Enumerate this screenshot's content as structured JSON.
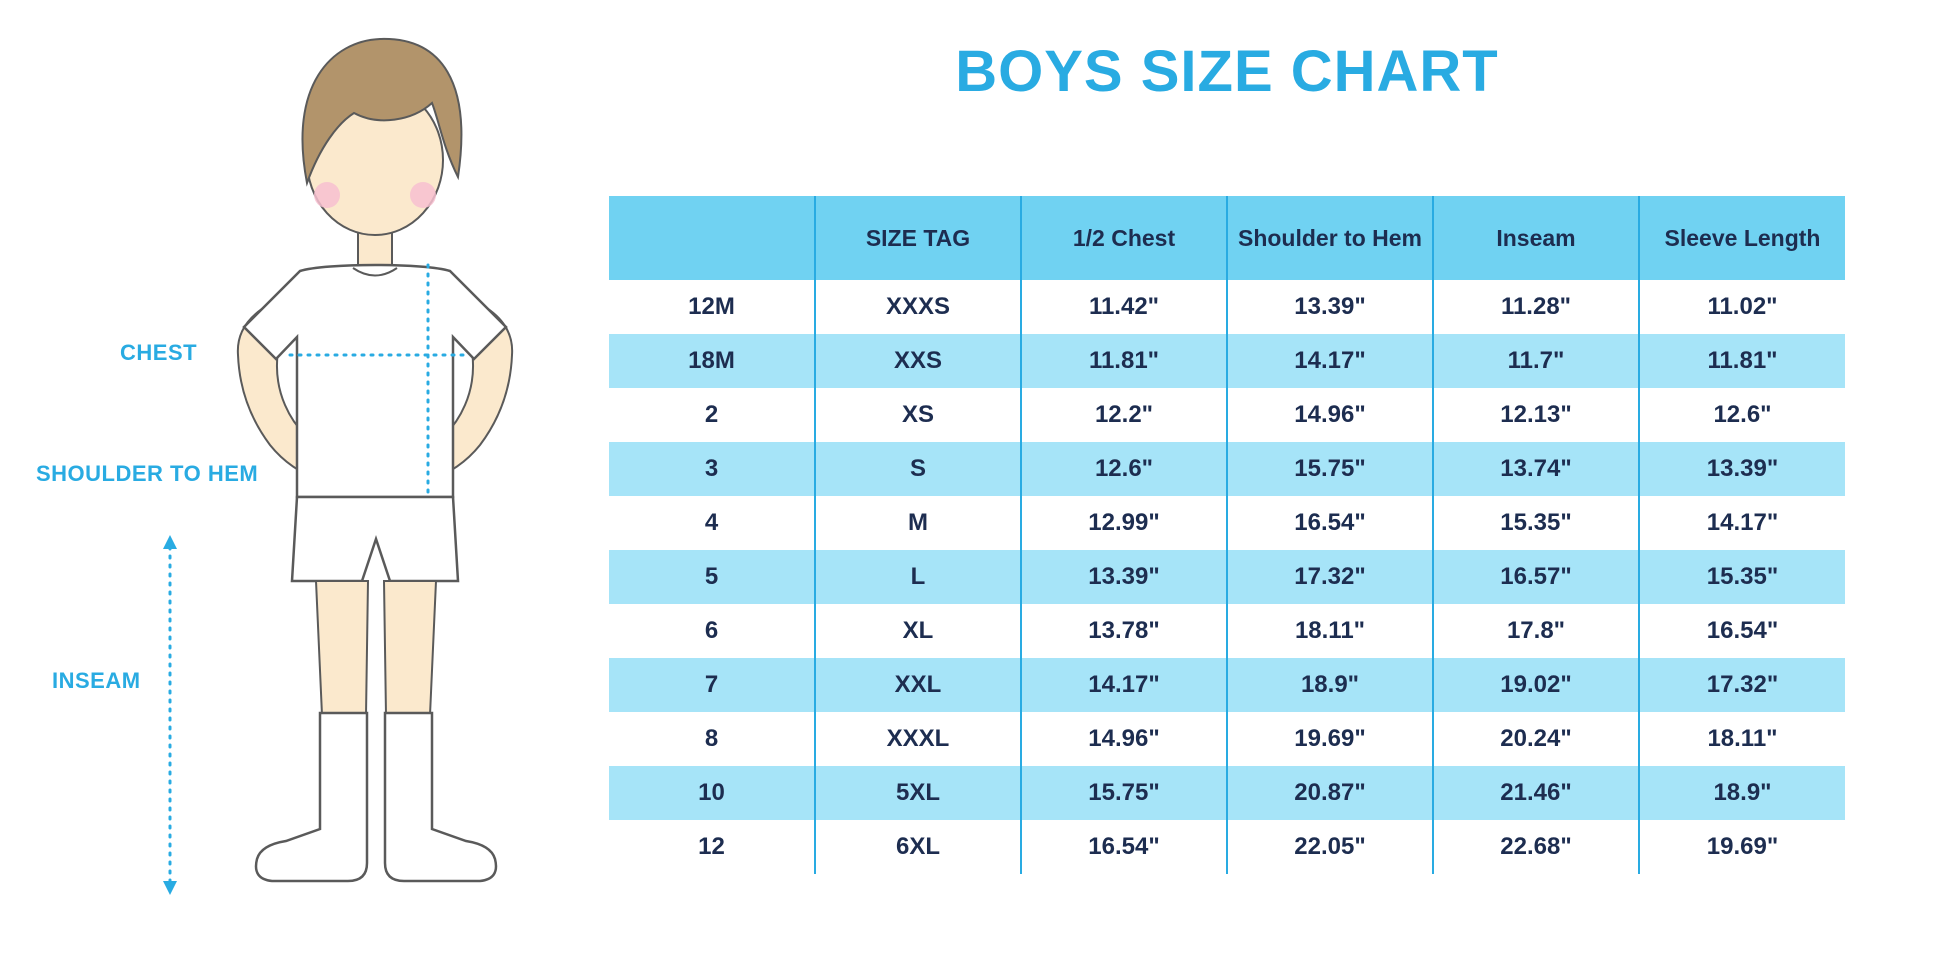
{
  "title": "BOYS SIZE CHART",
  "colors": {
    "accent": "#29ABE2",
    "header_bg": "#70D2F2",
    "row_alt_bg": "#A6E4F8",
    "text_dark": "#1D2D50"
  },
  "figure_labels": {
    "chest": "CHEST",
    "shoulder_to_hem": "SHOULDER TO HEM",
    "inseam": "INSEAM"
  },
  "chart_data": {
    "type": "table",
    "title": "BOYS SIZE CHART",
    "columns": [
      "",
      "SIZE TAG",
      "1/2 Chest",
      "Shoulder to Hem",
      "Inseam",
      "Sleeve Length"
    ],
    "rows": [
      [
        "12M",
        "XXXS",
        "11.42\"",
        "13.39\"",
        "11.28\"",
        "11.02\""
      ],
      [
        "18M",
        "XXS",
        "11.81\"",
        "14.17\"",
        "11.7\"",
        "11.81\""
      ],
      [
        "2",
        "XS",
        "12.2\"",
        "14.96\"",
        "12.13\"",
        "12.6\""
      ],
      [
        "3",
        "S",
        "12.6\"",
        "15.75\"",
        "13.74\"",
        "13.39\""
      ],
      [
        "4",
        "M",
        "12.99\"",
        "16.54\"",
        "15.35\"",
        "14.17\""
      ],
      [
        "5",
        "L",
        "13.39\"",
        "17.32\"",
        "16.57\"",
        "15.35\""
      ],
      [
        "6",
        "XL",
        "13.78\"",
        "18.11\"",
        "17.8\"",
        "16.54\""
      ],
      [
        "7",
        "XXL",
        "14.17\"",
        "18.9\"",
        "19.02\"",
        "17.32\""
      ],
      [
        "8",
        "XXXL",
        "14.96\"",
        "19.69\"",
        "20.24\"",
        "18.11\""
      ],
      [
        "10",
        "5XL",
        "15.75\"",
        "20.87\"",
        "21.46\"",
        "18.9\""
      ],
      [
        "12",
        "6XL",
        "16.54\"",
        "22.05\"",
        "22.68\"",
        "19.69\""
      ]
    ]
  }
}
